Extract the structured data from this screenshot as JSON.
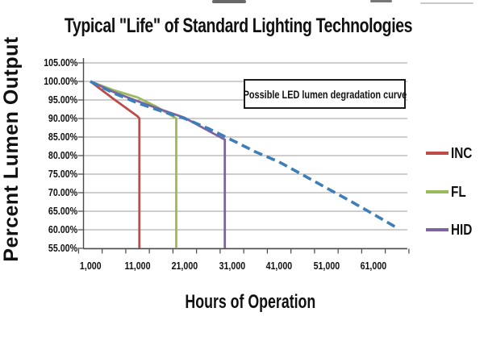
{
  "title": "Typical \"Life\" of Standard Lighting Technologies",
  "annotation": "Possible LED lumen degradation curve",
  "y_axis": {
    "title": "Percent Lumen Output",
    "ticks": [
      "105.00%",
      "100.00%",
      "95.00%",
      "90.00%",
      "85.00%",
      "80.00%",
      "75.00%",
      "70.00%",
      "65.00%",
      "60.00%",
      "55.00%"
    ]
  },
  "x_axis": {
    "title": "Hours of Operation",
    "ticks": [
      "1,000",
      "11,000",
      "21,000",
      "31,000",
      "41,000",
      "51,000",
      "61,000"
    ]
  },
  "legend": [
    {
      "label": "INC",
      "color": "#BE4B48"
    },
    {
      "label": "FL",
      "color": "#9BBB59"
    },
    {
      "label": "HID",
      "color": "#7E63A1"
    }
  ],
  "colors": {
    "inc": "#BE4B48",
    "fl": "#9BBB59",
    "hid": "#7E63A1",
    "led": "#3D7EB8",
    "gridline": "#9E9E9E",
    "axis": "#4A4A4A",
    "annotation_border": "#1C1C1C",
    "text": "#111111"
  },
  "chart_data": {
    "type": "line",
    "title": "Typical \"Life\" of Standard Lighting Technologies",
    "xlabel": "Hours of Operation",
    "ylabel": "Percent Lumen Output",
    "xlim": [
      1000,
      67000
    ],
    "ylim": [
      55,
      105
    ],
    "x_tick_values": [
      1000,
      11000,
      21000,
      31000,
      41000,
      51000,
      61000
    ],
    "y_tick_values": [
      105,
      100,
      95,
      90,
      85,
      80,
      75,
      70,
      65,
      60,
      55
    ],
    "grid": "horizontal",
    "legend_position": "right",
    "annotation": "Possible LED lumen degradation curve",
    "series": [
      {
        "name": "INC",
        "color": "#BE4B48",
        "style": "solid",
        "points": [
          [
            1000,
            100
          ],
          [
            6000,
            95.2
          ],
          [
            11000,
            90.6
          ],
          [
            11400,
            90
          ],
          [
            11400,
            55
          ]
        ]
      },
      {
        "name": "FL",
        "color": "#9BBB59",
        "style": "solid",
        "points": [
          [
            1000,
            100
          ],
          [
            6000,
            97.6
          ],
          [
            11000,
            95.7
          ],
          [
            15000,
            93.2
          ],
          [
            18800,
            90.3
          ],
          [
            19200,
            90
          ],
          [
            19200,
            55
          ]
        ]
      },
      {
        "name": "HID",
        "color": "#7E63A1",
        "style": "solid",
        "points": [
          [
            1000,
            100
          ],
          [
            6000,
            97.1
          ],
          [
            11000,
            94.7
          ],
          [
            16000,
            92.4
          ],
          [
            21000,
            90.2
          ],
          [
            26000,
            86.7
          ],
          [
            29500,
            84.3
          ],
          [
            29500,
            55
          ]
        ]
      },
      {
        "name": "LED (possible degradation curve)",
        "color": "#3D7EB8",
        "style": "dashed",
        "points": [
          [
            1000,
            100
          ],
          [
            6000,
            96.8
          ],
          [
            11000,
            94.2
          ],
          [
            16000,
            92.0
          ],
          [
            21000,
            90.0
          ],
          [
            26000,
            87.3
          ],
          [
            31000,
            84.2
          ],
          [
            36000,
            81.0
          ],
          [
            41000,
            78.3
          ],
          [
            46000,
            74.8
          ],
          [
            51000,
            71.3
          ],
          [
            56000,
            67.8
          ],
          [
            61000,
            64.2
          ],
          [
            66000,
            60.5
          ]
        ]
      }
    ]
  }
}
